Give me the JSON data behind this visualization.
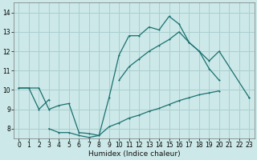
{
  "title": "",
  "xlabel": "Humidex (Indice chaleur)",
  "bg_color": "#cce8e8",
  "grid_color": "#aacfcf",
  "line_color": "#1a7070",
  "xlim": [
    -0.5,
    23.5
  ],
  "ylim": [
    7.5,
    14.5
  ],
  "xticks": [
    0,
    1,
    2,
    3,
    4,
    5,
    6,
    7,
    8,
    9,
    10,
    11,
    12,
    13,
    14,
    15,
    16,
    17,
    18,
    19,
    20,
    21,
    22,
    23
  ],
  "yticks": [
    8,
    9,
    10,
    11,
    12,
    13,
    14
  ],
  "line1_x": [
    0,
    1,
    2,
    3,
    4,
    5,
    6,
    7,
    8,
    9,
    10,
    11,
    12,
    13,
    14,
    15,
    16,
    17,
    18,
    19,
    20
  ],
  "line1_y": [
    10.1,
    10.1,
    10.1,
    9.0,
    9.2,
    9.3,
    7.8,
    7.75,
    7.65,
    9.6,
    11.8,
    12.8,
    12.8,
    13.25,
    13.1,
    13.8,
    13.4,
    12.45,
    12.0,
    11.1,
    10.5
  ],
  "line2_x": [
    0,
    1,
    2,
    3,
    10,
    11,
    12,
    13,
    14,
    15,
    16,
    17,
    18,
    19,
    20,
    23
  ],
  "line2_y": [
    10.1,
    10.1,
    9.0,
    9.5,
    10.5,
    11.2,
    11.6,
    12.0,
    12.3,
    12.6,
    13.0,
    12.45,
    12.0,
    11.5,
    12.0,
    9.6
  ],
  "line3_x": [
    3,
    4,
    5,
    6,
    7,
    8,
    9,
    10,
    11,
    12,
    13,
    14,
    15,
    16,
    17,
    18,
    19,
    20,
    23
  ],
  "line3_y": [
    8.0,
    7.8,
    7.8,
    7.65,
    7.55,
    7.65,
    8.1,
    8.3,
    8.55,
    8.7,
    8.9,
    9.05,
    9.25,
    9.45,
    9.6,
    9.75,
    9.85,
    9.95,
    9.6
  ]
}
